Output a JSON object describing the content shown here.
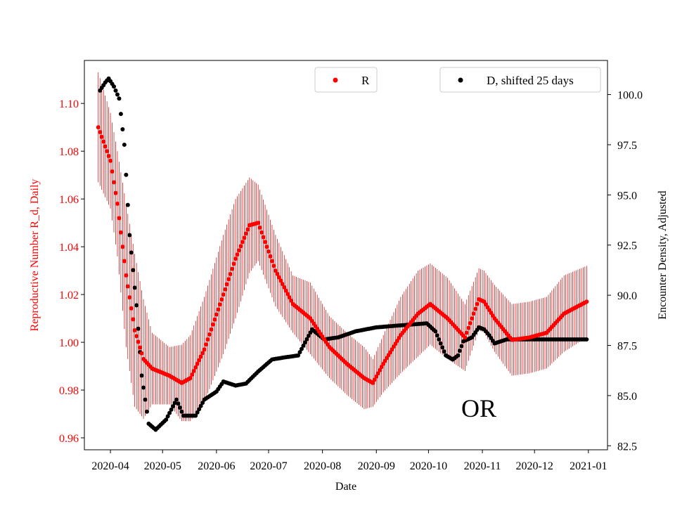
{
  "chart_data": {
    "type": "scatter",
    "xlabel": "Date",
    "ylabel_left": "Reproductive Number R_d, Daily",
    "ylabel_right": "Encounter Density, Adjusted",
    "annotation": "OR",
    "x_range": [
      "2020-03-17",
      "2021-01-12"
    ],
    "ylim_left": [
      0.955,
      1.118
    ],
    "ylim_right": [
      82.3,
      101.7
    ],
    "x_ticks": [
      "2020-04",
      "2020-05",
      "2020-06",
      "2020-07",
      "2020-08",
      "2020-09",
      "2020-10",
      "2020-11",
      "2020-12",
      "2021-01"
    ],
    "y_ticks_left": [
      "0.96",
      "0.98",
      "1.00",
      "1.02",
      "1.04",
      "1.06",
      "1.08",
      "1.10"
    ],
    "y_ticks_right": [
      "82.5",
      "85.0",
      "87.5",
      "90.0",
      "92.5",
      "95.0",
      "97.5",
      "100.0"
    ],
    "colors": {
      "R": "#ff0000",
      "D": "#000000",
      "errorbar": "#cc0000"
    },
    "series": [
      {
        "name": "R",
        "legend": "R",
        "axis": "left",
        "marker": "dot",
        "error_bar": true,
        "points": [
          [
            "2020-03-25",
            1.09,
            0.023
          ],
          [
            "2020-04-01",
            1.076,
            0.02
          ],
          [
            "2020-04-05",
            1.058,
            0.022
          ],
          [
            "2020-04-10",
            1.028,
            0.03
          ],
          [
            "2020-04-15",
            1.005,
            0.032
          ],
          [
            "2020-04-20",
            0.993,
            0.025
          ],
          [
            "2020-04-25",
            0.989,
            0.015
          ],
          [
            "2020-05-05",
            0.986,
            0.012
          ],
          [
            "2020-05-12",
            0.983,
            0.016
          ],
          [
            "2020-05-17",
            0.985,
            0.018
          ],
          [
            "2020-05-25",
            0.997,
            0.022
          ],
          [
            "2020-06-05",
            1.02,
            0.025
          ],
          [
            "2020-06-12",
            1.035,
            0.025
          ],
          [
            "2020-06-20",
            1.049,
            0.02
          ],
          [
            "2020-06-25",
            1.05,
            0.016
          ],
          [
            "2020-07-05",
            1.03,
            0.015
          ],
          [
            "2020-07-15",
            1.016,
            0.012
          ],
          [
            "2020-07-25",
            1.01,
            0.015
          ],
          [
            "2020-08-05",
            0.998,
            0.013
          ],
          [
            "2020-08-15",
            0.991,
            0.013
          ],
          [
            "2020-08-25",
            0.985,
            0.013
          ],
          [
            "2020-08-30",
            0.983,
            0.01
          ],
          [
            "2020-09-05",
            0.991,
            0.012
          ],
          [
            "2020-09-15",
            1.003,
            0.016
          ],
          [
            "2020-09-25",
            1.012,
            0.018
          ],
          [
            "2020-10-02",
            1.016,
            0.017
          ],
          [
            "2020-10-12",
            1.01,
            0.017
          ],
          [
            "2020-10-22",
            1.002,
            0.014
          ],
          [
            "2020-10-30",
            1.018,
            0.013
          ],
          [
            "2020-11-02",
            1.017,
            0.013
          ],
          [
            "2020-11-08",
            1.01,
            0.014
          ],
          [
            "2020-11-18",
            1.001,
            0.015
          ],
          [
            "2020-11-28",
            1.002,
            0.015
          ],
          [
            "2020-12-08",
            1.004,
            0.015
          ],
          [
            "2020-12-18",
            1.012,
            0.016
          ],
          [
            "2020-12-31",
            1.017,
            0.015
          ]
        ]
      },
      {
        "name": "D, shifted 25 days",
        "legend": "D, shifted 25 days",
        "axis": "right",
        "marker": "dot",
        "points": [
          [
            "2020-03-26",
            100.2
          ],
          [
            "2020-03-29",
            100.6
          ],
          [
            "2020-03-31",
            100.8
          ],
          [
            "2020-04-03",
            100.4
          ],
          [
            "2020-04-06",
            99.8
          ],
          [
            "2020-04-09",
            97.5
          ],
          [
            "2020-04-12",
            93.0
          ],
          [
            "2020-04-16",
            89.5
          ],
          [
            "2020-04-19",
            86.0
          ],
          [
            "2020-04-23",
            83.6
          ],
          [
            "2020-04-27",
            83.3
          ],
          [
            "2020-05-03",
            83.8
          ],
          [
            "2020-05-09",
            84.8
          ],
          [
            "2020-05-13",
            84.0
          ],
          [
            "2020-05-20",
            84.0
          ],
          [
            "2020-05-25",
            84.8
          ],
          [
            "2020-06-01",
            85.2
          ],
          [
            "2020-06-05",
            85.7
          ],
          [
            "2020-06-12",
            85.5
          ],
          [
            "2020-06-18",
            85.6
          ],
          [
            "2020-06-25",
            86.2
          ],
          [
            "2020-07-03",
            86.8
          ],
          [
            "2020-07-10",
            86.9
          ],
          [
            "2020-07-18",
            87.0
          ],
          [
            "2020-07-26",
            88.3
          ],
          [
            "2020-08-02",
            87.8
          ],
          [
            "2020-08-10",
            87.9
          ],
          [
            "2020-08-20",
            88.2
          ],
          [
            "2020-09-01",
            88.4
          ],
          [
            "2020-09-15",
            88.5
          ],
          [
            "2020-09-30",
            88.6
          ],
          [
            "2020-10-05",
            88.2
          ],
          [
            "2020-10-08",
            87.6
          ],
          [
            "2020-10-11",
            87.0
          ],
          [
            "2020-10-15",
            86.8
          ],
          [
            "2020-10-18",
            87.0
          ],
          [
            "2020-10-21",
            87.7
          ],
          [
            "2020-10-26",
            87.9
          ],
          [
            "2020-10-30",
            88.4
          ],
          [
            "2020-11-02",
            88.3
          ],
          [
            "2020-11-05",
            88.0
          ],
          [
            "2020-11-08",
            87.6
          ],
          [
            "2020-11-15",
            87.8
          ],
          [
            "2020-12-31",
            87.8
          ]
        ]
      }
    ]
  }
}
